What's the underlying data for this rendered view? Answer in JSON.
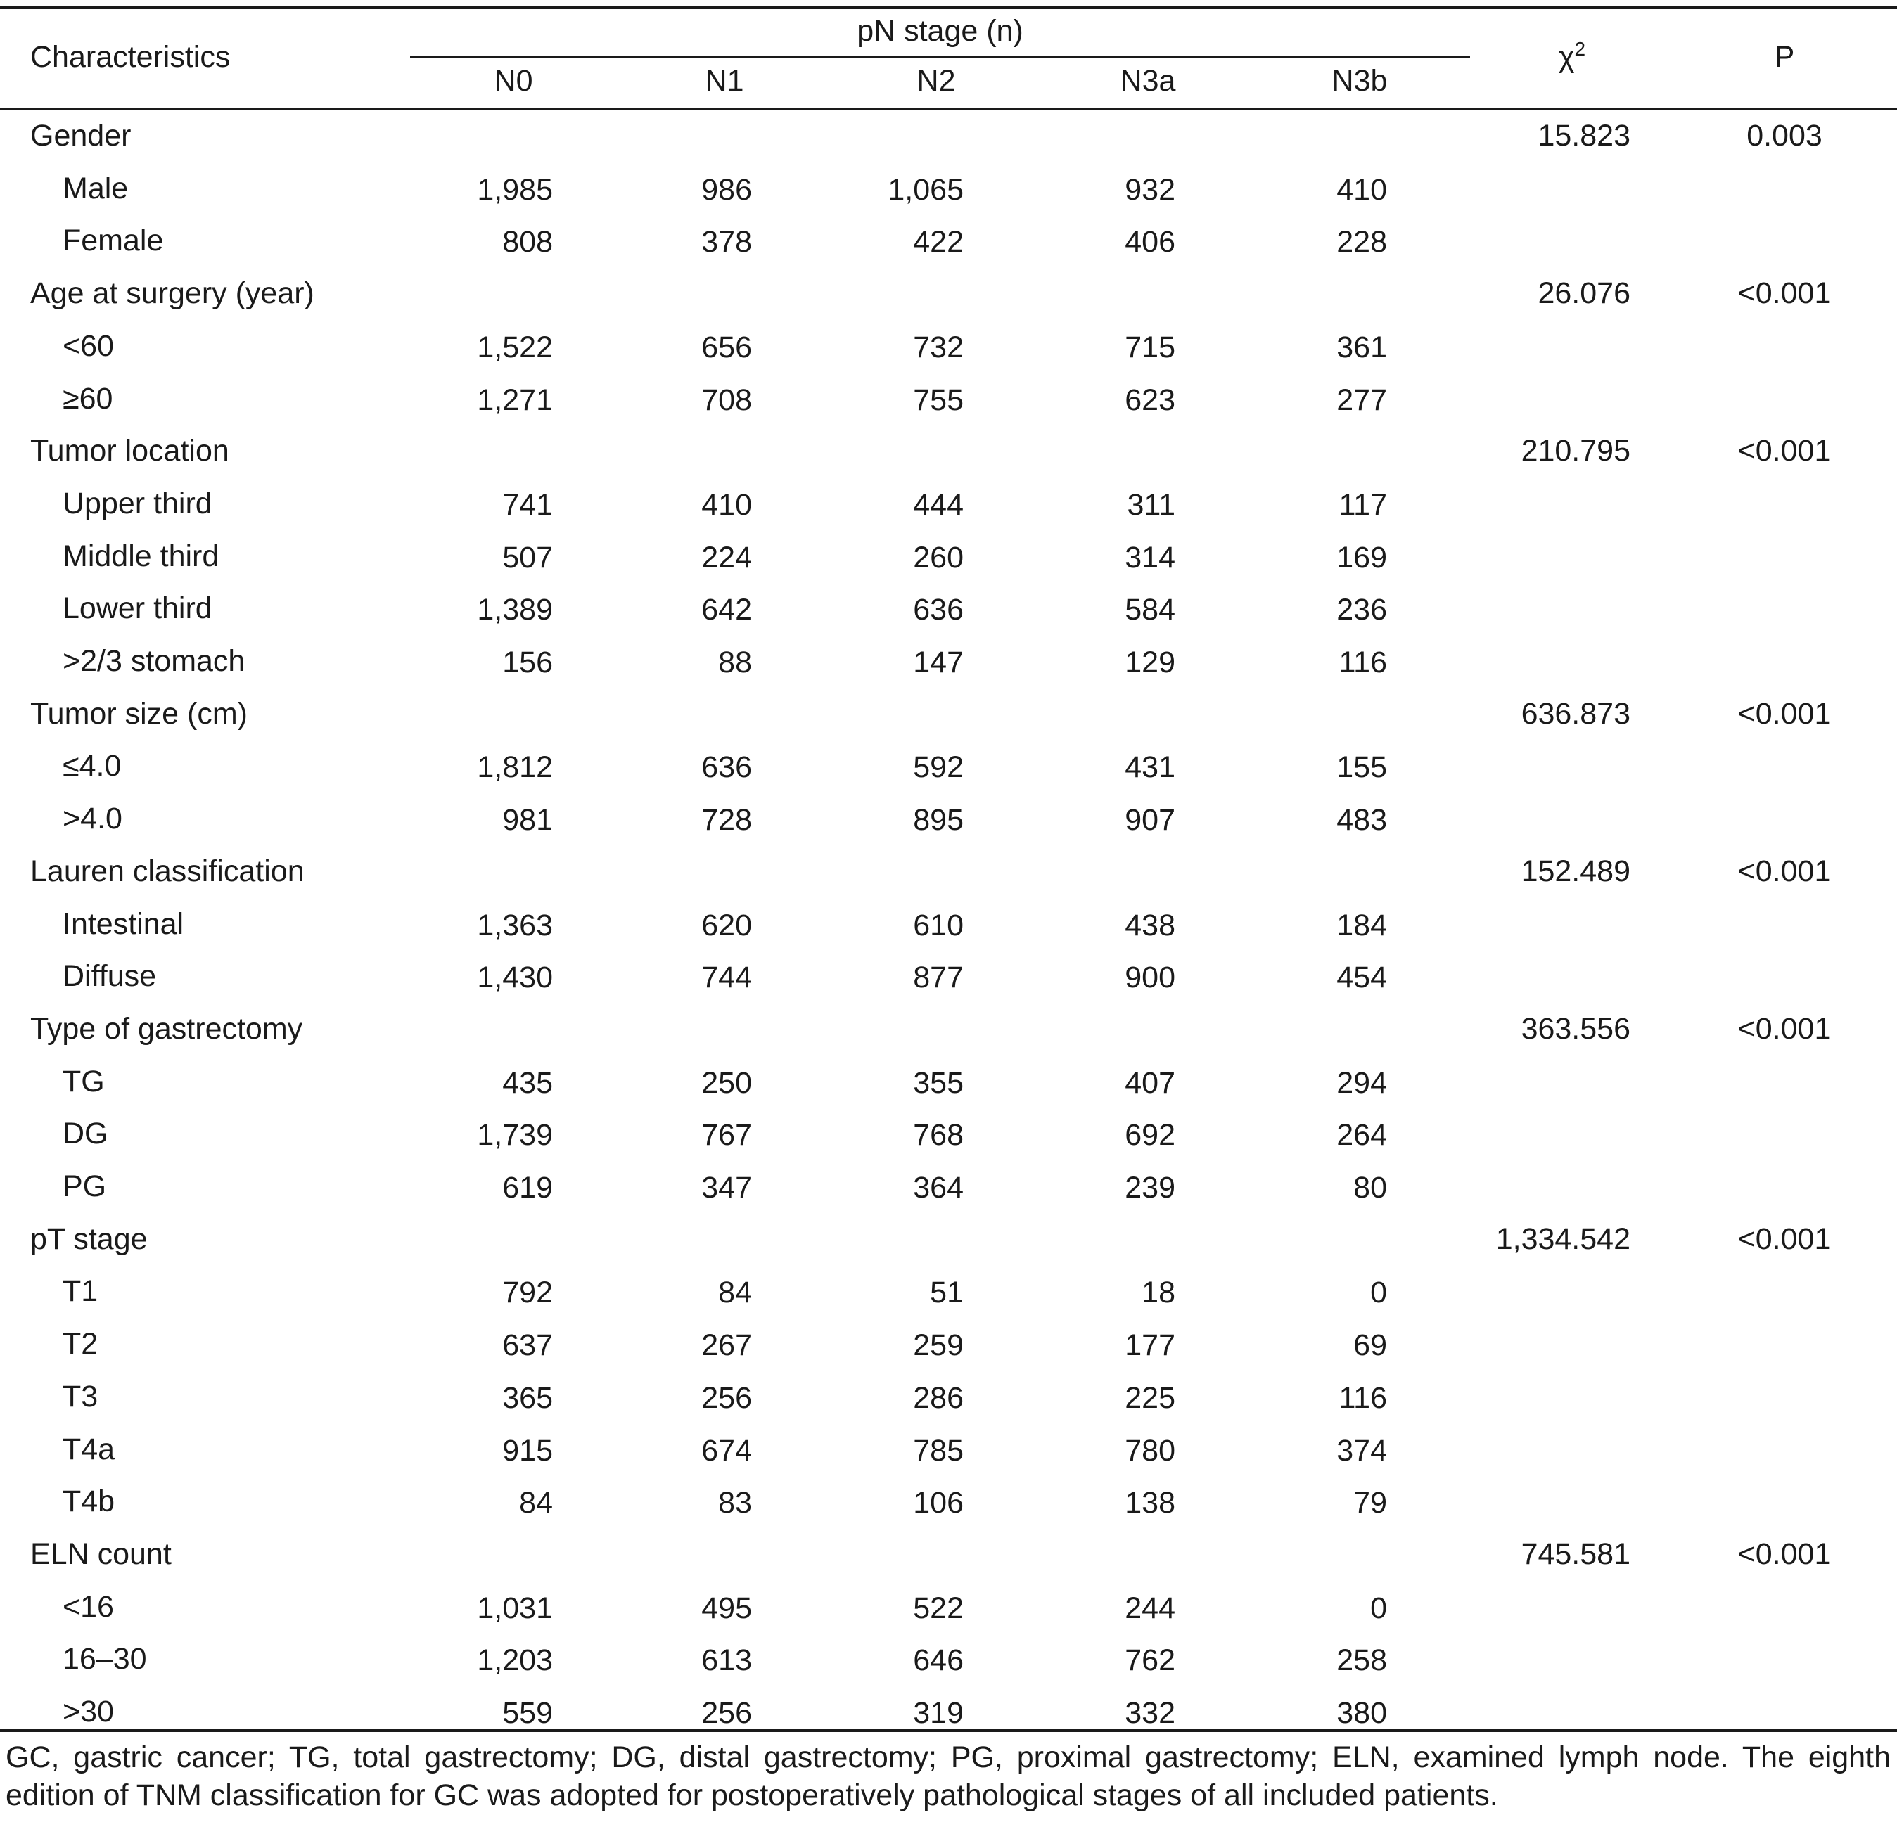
{
  "header": {
    "characteristics": "Characteristics",
    "group": "pN stage (n)",
    "columns": [
      "N0",
      "N1",
      "N2",
      "N3a",
      "N3b"
    ],
    "chi_symbol": "χ",
    "chi_exp": "2",
    "p": "P"
  },
  "rows": [
    {
      "label": "Gender",
      "chi": "15.823",
      "p": "0.003"
    },
    {
      "label": "Male",
      "values": [
        "1,985",
        "986",
        "1,065",
        "932",
        "410"
      ]
    },
    {
      "label": "Female",
      "values": [
        "808",
        "378",
        "422",
        "406",
        "228"
      ]
    },
    {
      "label": "Age at surgery (year)",
      "chi": "26.076",
      "p": "<0.001"
    },
    {
      "label": "<60",
      "values": [
        "1,522",
        "656",
        "732",
        "715",
        "361"
      ]
    },
    {
      "label": "≥60",
      "values": [
        "1,271",
        "708",
        "755",
        "623",
        "277"
      ]
    },
    {
      "label": "Tumor location",
      "chi": "210.795",
      "p": "<0.001"
    },
    {
      "label": "Upper third",
      "values": [
        "741",
        "410",
        "444",
        "311",
        "117"
      ]
    },
    {
      "label": "Middle third",
      "values": [
        "507",
        "224",
        "260",
        "314",
        "169"
      ]
    },
    {
      "label": "Lower third",
      "values": [
        "1,389",
        "642",
        "636",
        "584",
        "236"
      ]
    },
    {
      "label": ">2/3 stomach",
      "values": [
        "156",
        "88",
        "147",
        "129",
        "116"
      ]
    },
    {
      "label": "Tumor size (cm)",
      "chi": "636.873",
      "p": "<0.001"
    },
    {
      "label": "≤4.0",
      "values": [
        "1,812",
        "636",
        "592",
        "431",
        "155"
      ]
    },
    {
      "label": ">4.0",
      "values": [
        "981",
        "728",
        "895",
        "907",
        "483"
      ]
    },
    {
      "label": "Lauren classification",
      "chi": "152.489",
      "p": "<0.001"
    },
    {
      "label": "Intestinal",
      "values": [
        "1,363",
        "620",
        "610",
        "438",
        "184"
      ]
    },
    {
      "label": "Diffuse",
      "values": [
        "1,430",
        "744",
        "877",
        "900",
        "454"
      ]
    },
    {
      "label": "Type of gastrectomy",
      "chi": "363.556",
      "p": "<0.001"
    },
    {
      "label": "TG",
      "values": [
        "435",
        "250",
        "355",
        "407",
        "294"
      ]
    },
    {
      "label": "DG",
      "values": [
        "1,739",
        "767",
        "768",
        "692",
        "264"
      ]
    },
    {
      "label": "PG",
      "values": [
        "619",
        "347",
        "364",
        "239",
        "80"
      ]
    },
    {
      "label": "pT stage",
      "chi": "1,334.542",
      "p": "<0.001"
    },
    {
      "label": "T1",
      "values": [
        "792",
        "84",
        "51",
        "18",
        "0"
      ]
    },
    {
      "label": "T2",
      "values": [
        "637",
        "267",
        "259",
        "177",
        "69"
      ]
    },
    {
      "label": "T3",
      "values": [
        "365",
        "256",
        "286",
        "225",
        "116"
      ]
    },
    {
      "label": "T4a",
      "values": [
        "915",
        "674",
        "785",
        "780",
        "374"
      ]
    },
    {
      "label": "T4b",
      "values": [
        "84",
        "83",
        "106",
        "138",
        "79"
      ]
    },
    {
      "label": "ELN count",
      "chi": "745.581",
      "p": "<0.001"
    },
    {
      "label": "<16",
      "values": [
        "1,031",
        "495",
        "522",
        "244",
        "0"
      ]
    },
    {
      "label": "16–30",
      "values": [
        "1,203",
        "613",
        "646",
        "762",
        "258"
      ]
    },
    {
      "label": ">30",
      "values": [
        "559",
        "256",
        "319",
        "332",
        "380"
      ]
    }
  ],
  "footnote": "GC, gastric cancer; TG, total gastrectomy; DG, distal gastrectomy; PG, proximal gastrectomy; ELN, examined lymph node. The eighth edition of TNM classification for GC was adopted for postoperatively pathological stages of all included patients."
}
